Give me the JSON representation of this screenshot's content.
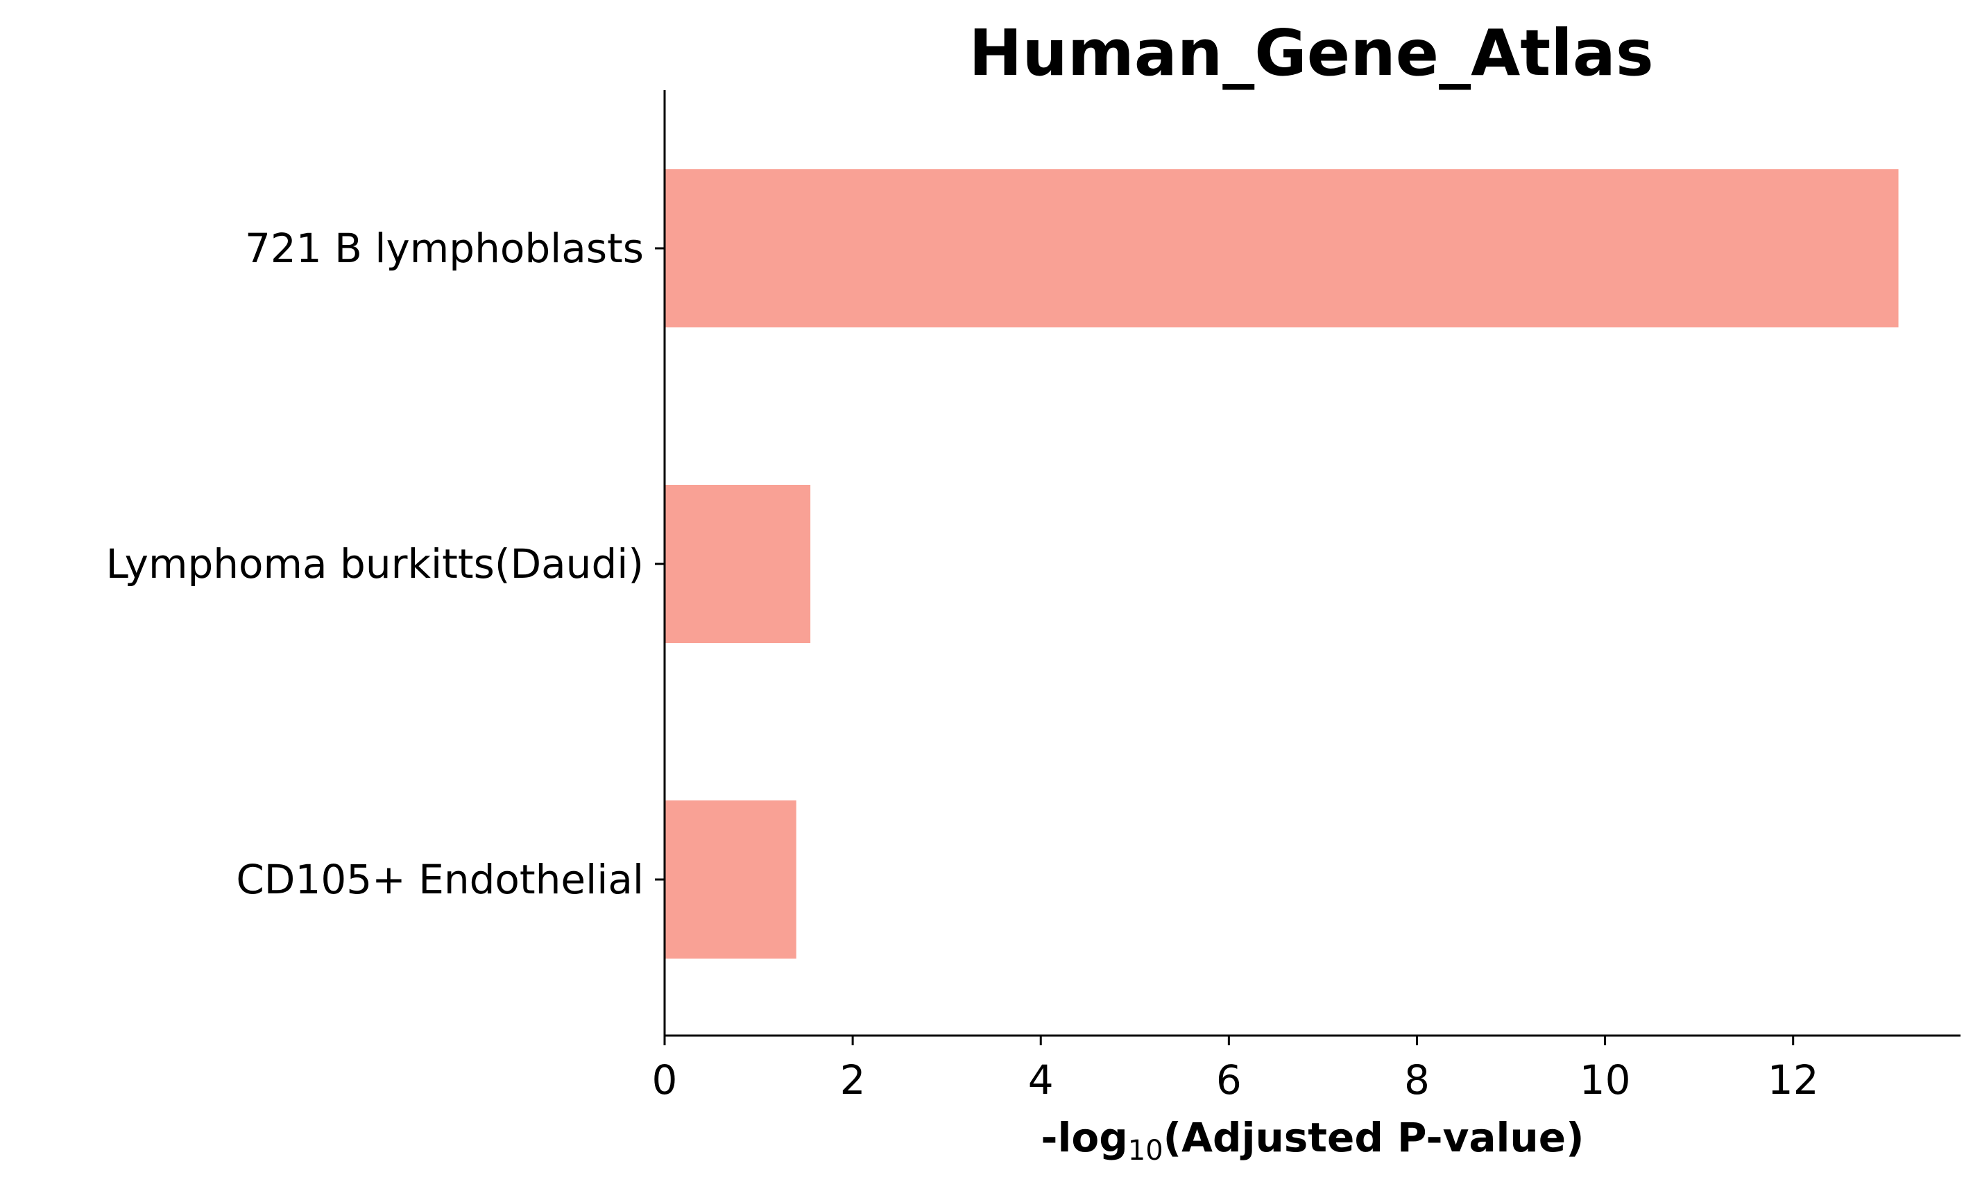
{
  "chart_data": {
    "type": "bar",
    "orientation": "horizontal",
    "title": "Human_Gene_Atlas",
    "xlabel": {
      "prefix": "-log",
      "subscript": "10",
      "suffix": "(Adjusted P-value)"
    },
    "ylabel": "",
    "categories": [
      "721 B lymphoblasts",
      "Lymphoma burkitts(Daudi)",
      "CD105+ Endothelial"
    ],
    "values": [
      13.12,
      1.55,
      1.4
    ],
    "xlim": [
      0,
      13.78
    ],
    "xticks": [
      0,
      2,
      4,
      6,
      8,
      10,
      12
    ],
    "grid": false,
    "legend": "none",
    "bar_color": "#f9a195"
  }
}
